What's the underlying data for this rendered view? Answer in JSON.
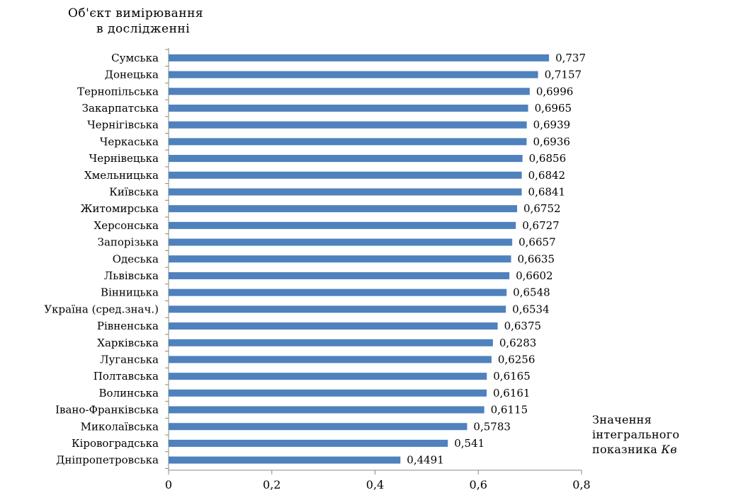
{
  "chart_data": {
    "type": "bar",
    "orientation": "horizontal",
    "ylabel_line1": "Об'єкт  вимірювання",
    "ylabel_line2": "в дослідженні",
    "xlabel_line1": "Значення",
    "xlabel_line2": "інтегрального",
    "xlabel_line3_prefix": "показника ",
    "xlabel_line3_italic": "Кв",
    "xlim": [
      0,
      0.8
    ],
    "xticks": [
      "0",
      "0,2",
      "0,4",
      "0,6",
      "0,8"
    ],
    "xtick_values": [
      0,
      0.2,
      0.4,
      0.6,
      0.8
    ],
    "bar_color": "#4f81bd",
    "categories": [
      "Сумська",
      "Донецька",
      "Тернопільська",
      "Закарпатська",
      "Чернігівська",
      "Черкаська",
      "Чернівецька",
      "Хмельницька",
      "Київська",
      "Житомирська",
      "Херсонська",
      "Запорізька",
      "Одеська",
      "Львівська",
      "Вінницька",
      "Україна (сред.знач.)",
      "Рівненська",
      "Харківська",
      "Луганська",
      "Полтавська",
      "Волинська",
      "Івано-Франківська",
      "Миколаївська",
      "Кіровоградська",
      "Дніпропетровська"
    ],
    "values": [
      0.737,
      0.7157,
      0.6996,
      0.6965,
      0.6939,
      0.6936,
      0.6856,
      0.6842,
      0.6841,
      0.6752,
      0.6727,
      0.6657,
      0.6635,
      0.6602,
      0.6548,
      0.6534,
      0.6375,
      0.6283,
      0.6256,
      0.6165,
      0.6161,
      0.6115,
      0.5783,
      0.541,
      0.4491
    ],
    "value_labels": [
      "0,737",
      "0,7157",
      "0,6996",
      "0,6965",
      "0,6939",
      "0,6936",
      "0,6856",
      "0,6842",
      "0,6841",
      "0,6752",
      "0,6727",
      "0,6657",
      "0,6635",
      "0,6602",
      "0,6548",
      "0,6534",
      "0,6375",
      "0,6283",
      "0,6256",
      "0,6165",
      "0,6161",
      "0,6115",
      "0,5783",
      "0,541",
      "0,4491"
    ],
    "grid": false,
    "legend": "none"
  }
}
